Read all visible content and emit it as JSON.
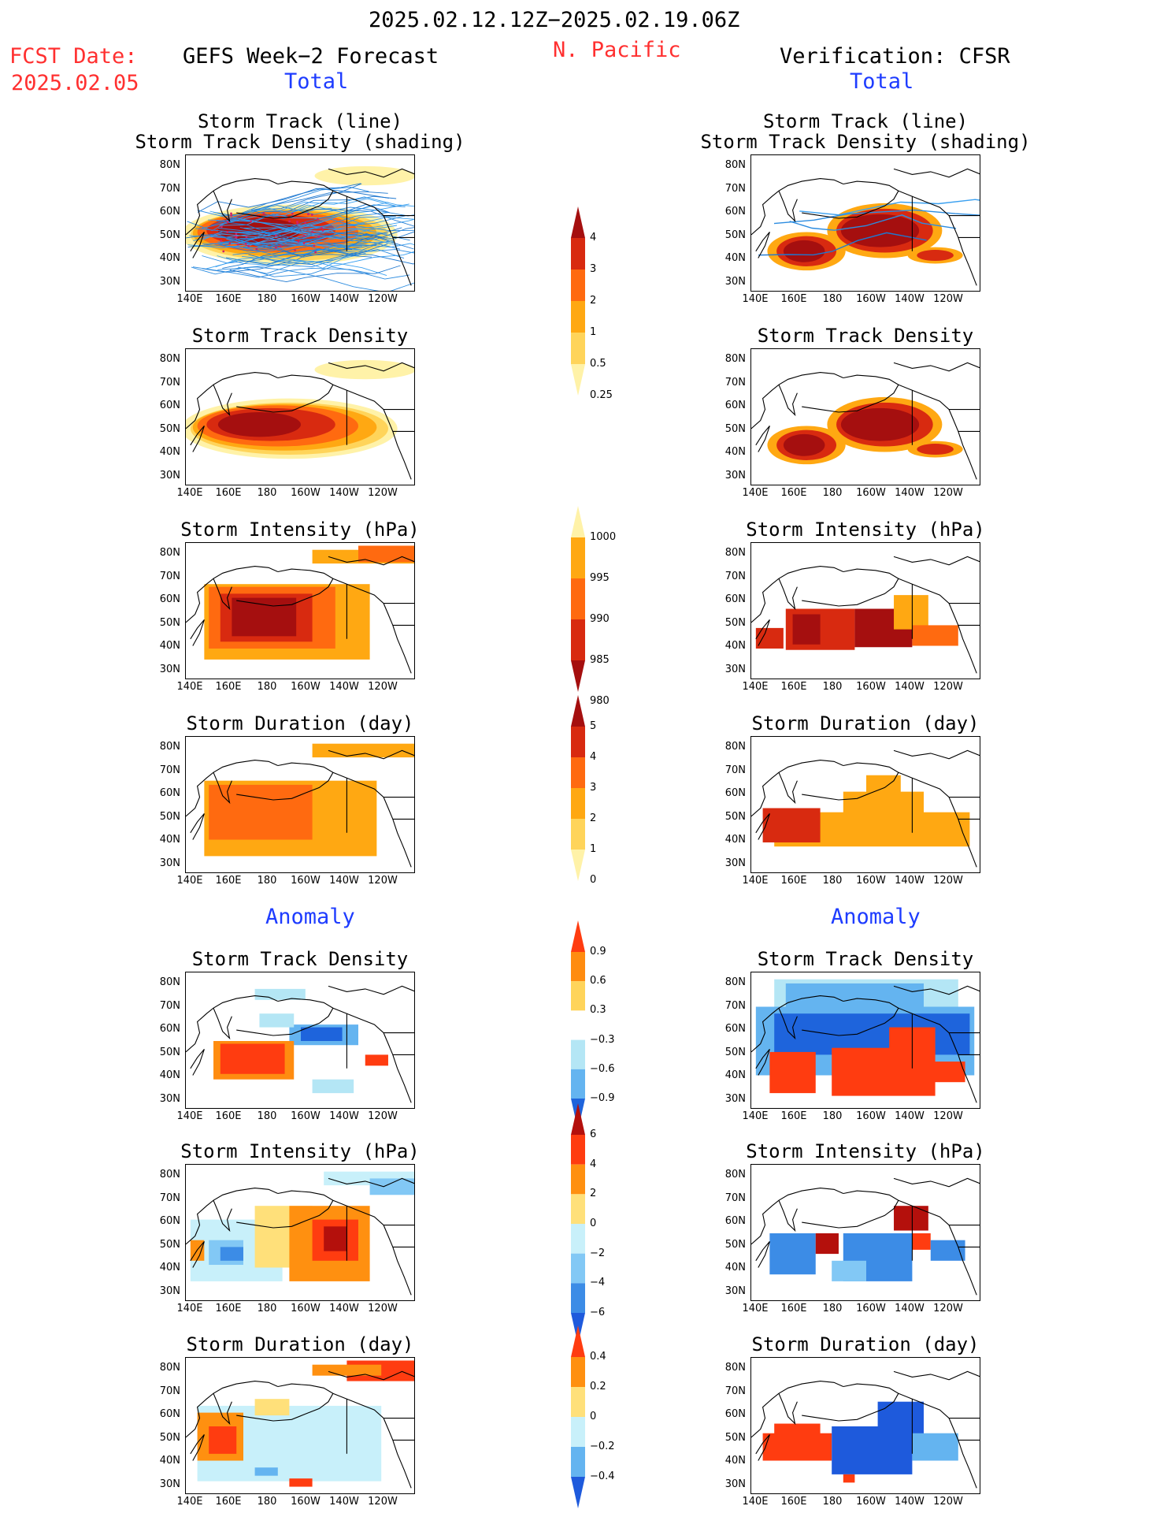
{
  "header": {
    "date_range": "2025.02.12.12Z−2025.02.19.06Z",
    "fcst_date_label": "FCST Date:",
    "fcst_date": "2025.02.05",
    "forecast_name": "GEFS Week−2 Forecast",
    "region": "N. Pacific",
    "verification": "Verification: CFSR"
  },
  "sections": {
    "total": "Total",
    "anomaly": "Anomaly"
  },
  "axes": {
    "lat_ticks": [
      "80N",
      "70N",
      "60N",
      "50N",
      "40N",
      "30N"
    ],
    "lon_ticks": [
      "140E",
      "160E",
      "180",
      "160W",
      "140W",
      "120W"
    ]
  },
  "rows": [
    {
      "title": [
        "Storm Track (line)",
        "Storm Track Density (shading)"
      ],
      "var": "track"
    },
    {
      "title": [
        "Storm Track Density"
      ],
      "var": "density"
    },
    {
      "title": [
        "Storm Intensity (hPa)"
      ],
      "var": "intensity"
    },
    {
      "title": [
        "Storm Duration (day)"
      ],
      "var": "duration"
    },
    {
      "title": [
        "Storm Track Density"
      ],
      "var": "density_anom"
    },
    {
      "title": [
        "Storm Intensity (hPa)"
      ],
      "var": "intensity_anom"
    },
    {
      "title": [
        "Storm Duration (day)"
      ],
      "var": "duration_anom"
    }
  ],
  "colorbars": {
    "density": {
      "labels": [
        "4",
        "3",
        "2",
        "1",
        "0.5",
        "0.25"
      ],
      "colors": [
        "#a50f0f",
        "#d82a10",
        "#ff6a10",
        "#ffa812",
        "#ffd45a",
        "#fff2a8"
      ]
    },
    "intensity": {
      "labels": [
        "1000",
        "995",
        "990",
        "985",
        "980"
      ],
      "colors": [
        "#fff2a8",
        "#ffa812",
        "#ff6a10",
        "#d82a10",
        "#a50f0f"
      ]
    },
    "duration": {
      "labels": [
        "5",
        "4",
        "3",
        "2",
        "1",
        "0"
      ],
      "colors": [
        "#a50f0f",
        "#d82a10",
        "#ff6a10",
        "#ffa812",
        "#ffd45a",
        "#fff2a8"
      ]
    },
    "density_anom": {
      "labels": [
        "0.9",
        "0.6",
        "0.3",
        "−0.3",
        "−0.6",
        "−0.9"
      ],
      "colors": [
        "#ff3c10",
        "#ff8c10",
        "#ffd45a",
        "#ffffff",
        "#b4e6f5",
        "#64b4f0",
        "#1e64dc"
      ]
    },
    "intensity_anom": {
      "labels": [
        "6",
        "4",
        "2",
        "0",
        "−2",
        "−4",
        "−6"
      ],
      "colors": [
        "#b4100c",
        "#ff3c10",
        "#ff9010",
        "#ffe07a",
        "#c8f0fa",
        "#82c8f5",
        "#3c8ce6",
        "#1e5adc"
      ]
    },
    "duration_anom": {
      "labels": [
        "0.4",
        "0.2",
        "0",
        "−0.2",
        "−0.4"
      ],
      "colors": [
        "#ff3c10",
        "#ff9010",
        "#ffe07a",
        "#c8f0fa",
        "#64b4f0",
        "#1e5adc"
      ]
    }
  }
}
